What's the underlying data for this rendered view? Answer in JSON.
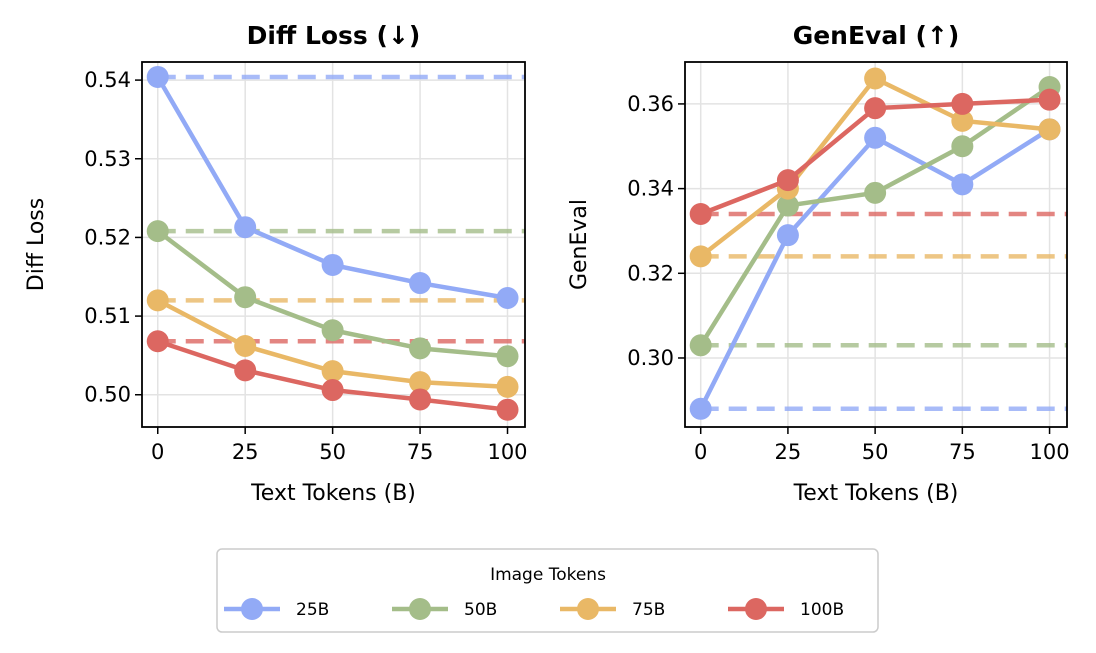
{
  "chart_data": [
    {
      "type": "line",
      "title": "Diff Loss (↓)",
      "xlabel": "Text Tokens (B)",
      "ylabel": "Diff Loss",
      "x": [
        0,
        25,
        50,
        75,
        100
      ],
      "xticks": [
        "0",
        "25",
        "50",
        "75",
        "100"
      ],
      "yticks": [
        "0.50",
        "0.51",
        "0.52",
        "0.53",
        "0.54"
      ],
      "ylim": [
        0.4959,
        0.5423
      ],
      "xlim": [
        -4.5,
        105
      ],
      "grid": true,
      "series": [
        {
          "name": "25B",
          "color": "#92aaf6",
          "values": [
            0.5404,
            0.5213,
            0.5165,
            0.5142,
            0.5123
          ],
          "baseline": 0.5404
        },
        {
          "name": "50B",
          "color": "#a4bd89",
          "values": [
            0.5208,
            0.5124,
            0.5082,
            0.5059,
            0.5049
          ],
          "baseline": 0.5208
        },
        {
          "name": "75B",
          "color": "#e9b866",
          "values": [
            0.512,
            0.5062,
            0.503,
            0.5016,
            0.501
          ],
          "baseline": 0.512
        },
        {
          "name": "100B",
          "color": "#dc6761",
          "values": [
            0.5068,
            0.5031,
            0.5006,
            0.4994,
            0.4981
          ],
          "baseline": 0.5068
        }
      ]
    },
    {
      "type": "line",
      "title": "GenEval (↑)",
      "xlabel": "Text Tokens (B)",
      "ylabel": "GenEval",
      "x": [
        0,
        25,
        50,
        75,
        100
      ],
      "xticks": [
        "0",
        "25",
        "50",
        "75",
        "100"
      ],
      "yticks": [
        "0.30",
        "0.32",
        "0.34",
        "0.36"
      ],
      "ylim": [
        0.2837,
        0.3699
      ],
      "xlim": [
        -4.5,
        105
      ],
      "grid": true,
      "series": [
        {
          "name": "25B",
          "color": "#92aaf6",
          "values": [
            0.288,
            0.329,
            0.352,
            0.341,
            0.354
          ],
          "baseline": 0.288
        },
        {
          "name": "50B",
          "color": "#a4bd89",
          "values": [
            0.303,
            0.336,
            0.339,
            0.35,
            0.364
          ],
          "baseline": 0.303
        },
        {
          "name": "75B",
          "color": "#e9b866",
          "values": [
            0.324,
            0.34,
            0.366,
            0.356,
            0.354
          ],
          "baseline": 0.324
        },
        {
          "name": "100B",
          "color": "#dc6761",
          "values": [
            0.334,
            0.342,
            0.359,
            0.36,
            0.361
          ],
          "baseline": 0.334
        }
      ]
    }
  ],
  "legend": {
    "title": "Image Tokens",
    "placement": "bottom-center",
    "entries": [
      "25B",
      "50B",
      "75B",
      "100B"
    ]
  }
}
